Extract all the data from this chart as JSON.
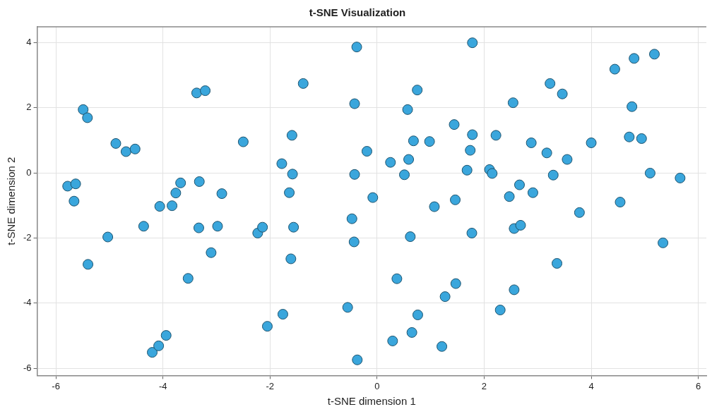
{
  "chart_data": {
    "type": "scatter",
    "title": "t-SNE Visualization",
    "xlabel": "t-SNE dimension 1",
    "ylabel": "t-SNE dimension 2",
    "xlim": [
      -6.35,
      6.15
    ],
    "ylim": [
      -6.22,
      4.48
    ],
    "xticks": [
      -6,
      -4,
      -2,
      0,
      2,
      4,
      6
    ],
    "yticks": [
      -6,
      -4,
      -2,
      0,
      2,
      4
    ],
    "grid": true,
    "marker": "circle",
    "legend": false,
    "series": [
      {
        "color": "#3aa6dc",
        "x": [
          -5.78,
          -5.63,
          -5.66,
          -5.49,
          -5.41,
          -5.4,
          -5.03,
          -4.88,
          -4.69,
          -4.52,
          -4.36,
          -4.2,
          -4.08,
          -4.06,
          -3.94,
          -3.83,
          -3.76,
          -3.67,
          -3.53,
          -3.37,
          -3.21,
          -3.33,
          -3.32,
          -3.1,
          -2.98,
          -2.9,
          -2.5,
          -2.23,
          -2.14,
          -2.05,
          -1.78,
          -1.76,
          -1.64,
          -1.61,
          -1.58,
          -1.59,
          -1.56,
          -1.38,
          -0.55,
          -0.47,
          -0.42,
          -0.38,
          -0.42,
          -0.43,
          -0.37,
          -0.19,
          -0.08,
          0.25,
          0.29,
          0.37,
          0.51,
          0.57,
          0.59,
          0.62,
          0.65,
          0.68,
          0.75,
          0.76,
          0.98,
          1.07,
          1.21,
          1.27,
          1.44,
          1.46,
          1.47,
          1.68,
          1.74,
          1.77,
          1.78,
          1.78,
          2.1,
          2.15,
          2.22,
          2.3,
          2.47,
          2.54,
          2.56,
          2.56,
          2.66,
          2.68,
          2.88,
          2.91,
          3.17,
          3.23,
          3.29,
          3.36,
          3.46,
          3.55,
          3.78,
          4.0,
          4.44,
          4.54,
          4.71,
          4.76,
          4.8,
          4.94,
          5.1,
          5.18,
          5.34,
          5.66
        ],
        "values": [
          -0.41,
          -0.34,
          -0.87,
          1.94,
          1.69,
          -2.81,
          -1.97,
          0.9,
          0.65,
          0.73,
          -1.64,
          -5.51,
          -5.31,
          -1.03,
          -4.99,
          -1.01,
          -0.62,
          -0.31,
          -3.24,
          2.45,
          2.52,
          -1.69,
          -0.27,
          -2.45,
          -1.64,
          -0.64,
          0.95,
          -1.85,
          -1.67,
          -4.71,
          0.28,
          -4.34,
          -0.61,
          -2.64,
          -0.04,
          1.15,
          -1.67,
          2.74,
          -4.13,
          -1.41,
          2.12,
          3.86,
          -0.05,
          -2.12,
          -5.74,
          0.66,
          -0.76,
          0.32,
          -5.16,
          -3.25,
          -0.06,
          1.94,
          0.41,
          -1.96,
          -4.9,
          0.98,
          2.54,
          -4.36,
          0.96,
          -1.04,
          -5.33,
          -3.8,
          1.48,
          -0.83,
          -3.4,
          0.08,
          0.69,
          -1.85,
          3.99,
          1.17,
          0.1,
          -0.02,
          1.15,
          -4.21,
          -0.73,
          2.15,
          -1.71,
          -3.59,
          -0.37,
          -1.61,
          0.92,
          -0.61,
          0.61,
          2.74,
          -0.07,
          -2.78,
          2.42,
          0.41,
          -1.22,
          0.92,
          3.18,
          -0.9,
          1.1,
          2.03,
          3.51,
          1.05,
          -0.01,
          3.64,
          -2.15,
          -0.16
        ]
      }
    ]
  }
}
